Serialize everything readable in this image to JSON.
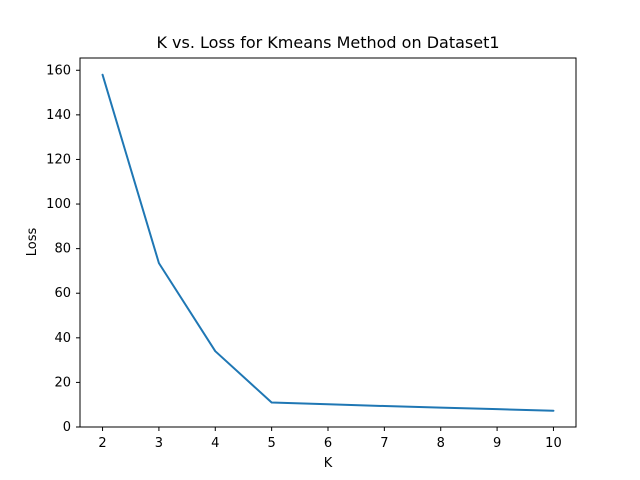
{
  "chart_data": {
    "type": "line",
    "title": "K vs. Loss for Kmeans Method on Dataset1",
    "xlabel": "K",
    "ylabel": "Loss",
    "x": [
      2,
      3,
      4,
      5,
      6,
      7,
      8,
      9,
      10
    ],
    "series": [
      {
        "values": [
          158,
          73.5,
          34,
          11,
          10.2,
          9.4,
          8.7,
          8.0,
          7.3
        ],
        "color": "#1f77b4"
      }
    ],
    "xticks": [
      2,
      3,
      4,
      5,
      6,
      7,
      8,
      9,
      10
    ],
    "yticks": [
      0,
      20,
      40,
      60,
      80,
      100,
      120,
      140,
      160
    ],
    "xlim": [
      1.6,
      10.4
    ],
    "ylim": [
      0,
      165.5
    ],
    "grid": false,
    "legend": "none"
  }
}
